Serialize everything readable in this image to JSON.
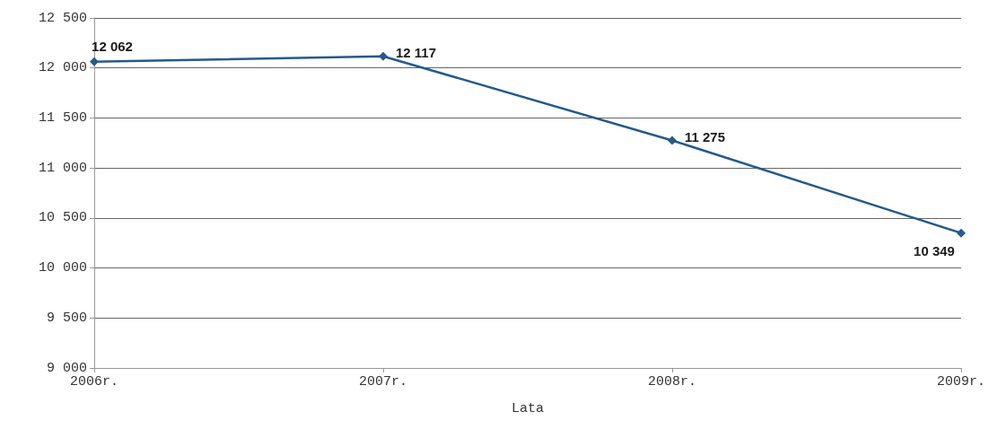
{
  "chart_data": {
    "type": "line",
    "xlabel": "Lata",
    "categories": [
      "2006r.",
      "2007r.",
      "2008r.",
      "2009r."
    ],
    "series": [
      {
        "color": "#245a8c",
        "values": [
          12062,
          12117,
          11275,
          10349
        ],
        "value_labels": [
          "12 062",
          "12 117",
          "11 275",
          "10 349"
        ]
      }
    ],
    "ylim": [
      9000,
      12500
    ],
    "yticks": [
      {
        "value": 9000,
        "label": "9 000"
      },
      {
        "value": 9500,
        "label": "9 500"
      },
      {
        "value": 10000,
        "label": "10 000"
      },
      {
        "value": 10500,
        "label": "10 500"
      },
      {
        "value": 11000,
        "label": "11 000"
      },
      {
        "value": 11500,
        "label": "11 500"
      },
      {
        "value": 12000,
        "label": "12 000"
      },
      {
        "value": 12500,
        "label": "12 500"
      }
    ],
    "grid": "y",
    "marker": "diamond",
    "line_style": "solid"
  }
}
